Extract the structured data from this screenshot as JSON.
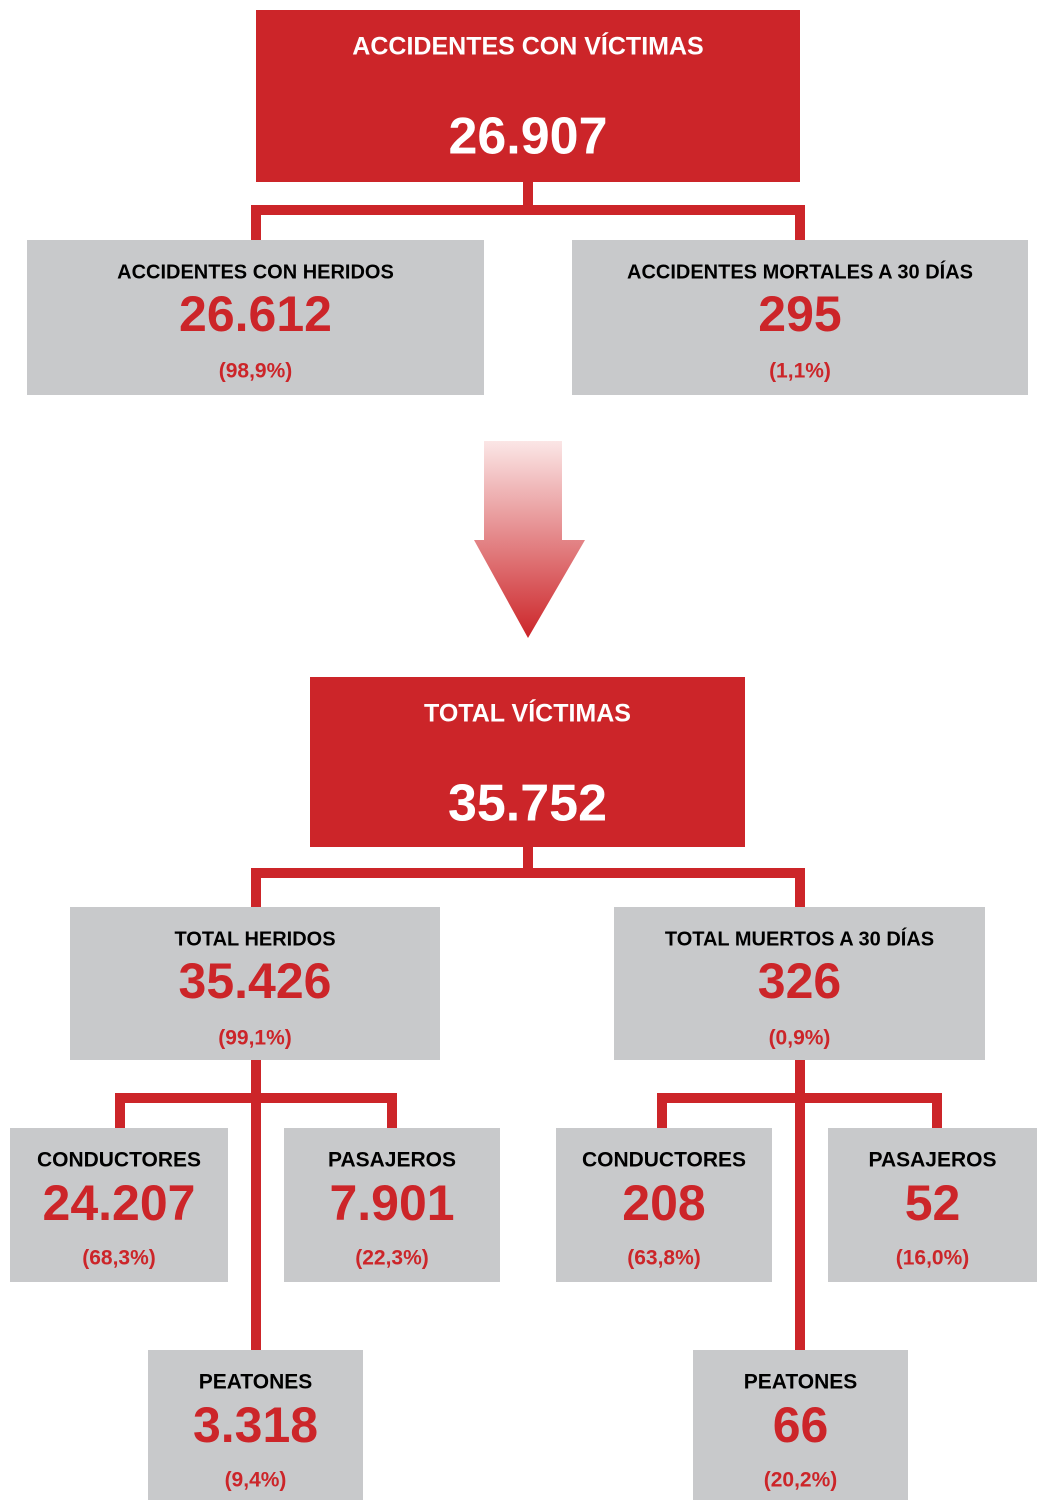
{
  "boxes": [
    {
      "title": "ACCIDENTES CON VÍCTIMAS",
      "value": "26.907"
    },
    {
      "title": "ACCIDENTES CON HERIDOS",
      "value": "26.612",
      "share": "(98,9%)"
    },
    {
      "title": "ACCIDENTES MORTALES A 30 DÍAS",
      "value": "295",
      "share": "(1,1%)"
    },
    {
      "title": "TOTAL VÍCTIMAS",
      "value": "35.752"
    },
    {
      "title": "TOTAL HERIDOS",
      "value": "35.426",
      "share": "(99,1%)"
    },
    {
      "title": "TOTAL MUERTOS A 30 DÍAS",
      "value": "326",
      "share": "(0,9%)"
    },
    {
      "title": "CONDUCTORES",
      "value": "24.207",
      "share": "(68,3%)"
    },
    {
      "title": "PASAJEROS",
      "value": "7.901",
      "share": "(22,3%)"
    },
    {
      "title": "PEATONES",
      "value": "3.318",
      "share": "(9,4%)"
    },
    {
      "title": "CONDUCTORES",
      "value": "208",
      "share": "(63,8%)"
    },
    {
      "title": "PASAJEROS",
      "value": "52",
      "share": "(16,0%)"
    },
    {
      "title": "PEATONES",
      "value": "66",
      "share": "(20,2%)"
    }
  ]
}
